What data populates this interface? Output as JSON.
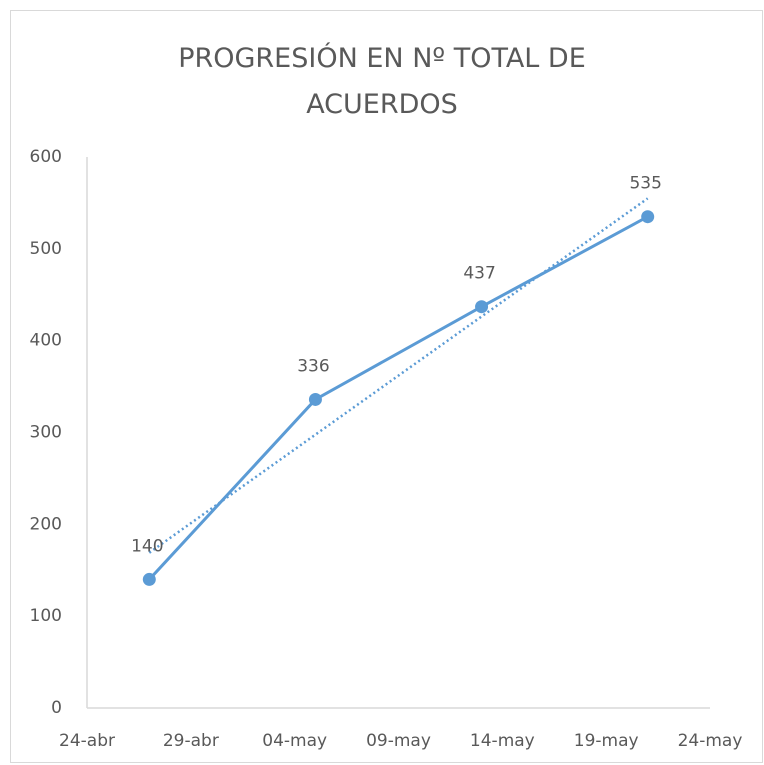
{
  "chart_data": {
    "type": "line",
    "title": "PROGRESIÓN EN Nº TOTAL DE ACUERDOS",
    "x": [
      "27-abr",
      "05-may",
      "13-may",
      "21-may"
    ],
    "series": [
      {
        "color": "#5b9bd5",
        "values": [
          140,
          336,
          437,
          535
        ]
      }
    ],
    "xlim": [
      "24-abr",
      "24-may"
    ],
    "xticks": [
      "24-abr",
      "29-abr",
      "04-may",
      "09-may",
      "14-may",
      "19-may",
      "24-may"
    ],
    "ylim": [
      0,
      600
    ],
    "yticks": [
      0,
      100,
      200,
      300,
      400,
      500,
      600
    ],
    "grid": false,
    "trendline": "linear",
    "data_labels": true
  }
}
